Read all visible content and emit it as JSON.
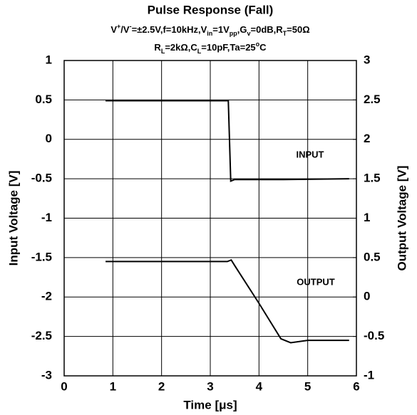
{
  "chart_data": {
    "type": "line",
    "title": "Pulse Response (Fall)",
    "subtitle_lines": [
      [
        {
          "text": "V"
        },
        {
          "text": "+",
          "shift": "sup"
        },
        {
          "text": "/V"
        },
        {
          "text": "-",
          "shift": "sup"
        },
        {
          "text": "=±2.5V,f=10kHz,V"
        },
        {
          "text": "in",
          "shift": "sub"
        },
        {
          "text": "=1V"
        },
        {
          "text": "pp",
          "shift": "sub"
        },
        {
          "text": ",G"
        },
        {
          "text": "v",
          "shift": "sub"
        },
        {
          "text": "=0dB,R"
        },
        {
          "text": "T",
          "shift": "sub"
        },
        {
          "text": "=50Ω"
        }
      ],
      [
        {
          "text": "R"
        },
        {
          "text": "L",
          "shift": "sub"
        },
        {
          "text": "=2kΩ,C"
        },
        {
          "text": "L",
          "shift": "sub"
        },
        {
          "text": "=10pF,Ta=25"
        },
        {
          "text": "o",
          "shift": "sup"
        },
        {
          "text": "C"
        }
      ]
    ],
    "x_label": "Time [μs]",
    "y_label": "Input Voltage [V]",
    "y2_label": "Output Voltage [V]",
    "xlim": [
      0,
      6
    ],
    "xticks": [
      0,
      1,
      2,
      3,
      4,
      5,
      6
    ],
    "ylim": [
      -3,
      1
    ],
    "yticks": [
      1,
      0.5,
      0,
      -0.5,
      -1,
      -1.5,
      -2,
      -2.5,
      -3
    ],
    "y2lim": [
      -1,
      3
    ],
    "y2ticks": [
      3,
      2.5,
      2,
      1.5,
      1,
      0.5,
      0,
      -0.5,
      -1
    ],
    "grid": true,
    "series": [
      {
        "name": "INPUT",
        "color": "#000000",
        "x": [
          0.85,
          3.37,
          3.42,
          3.5,
          4.5,
          5.85
        ],
        "values": [
          0.49,
          0.49,
          -0.53,
          -0.51,
          -0.51,
          -0.5
        ]
      },
      {
        "name": "OUTPUT",
        "color": "#000000",
        "axis": "y2",
        "x": [
          0.85,
          3.35,
          3.43,
          3.5,
          4.0,
          4.45,
          4.65,
          5.0,
          5.85
        ],
        "values": [
          0.45,
          0.45,
          0.47,
          0.4,
          -0.08,
          -0.53,
          -0.58,
          -0.55,
          -0.55
        ]
      }
    ]
  }
}
